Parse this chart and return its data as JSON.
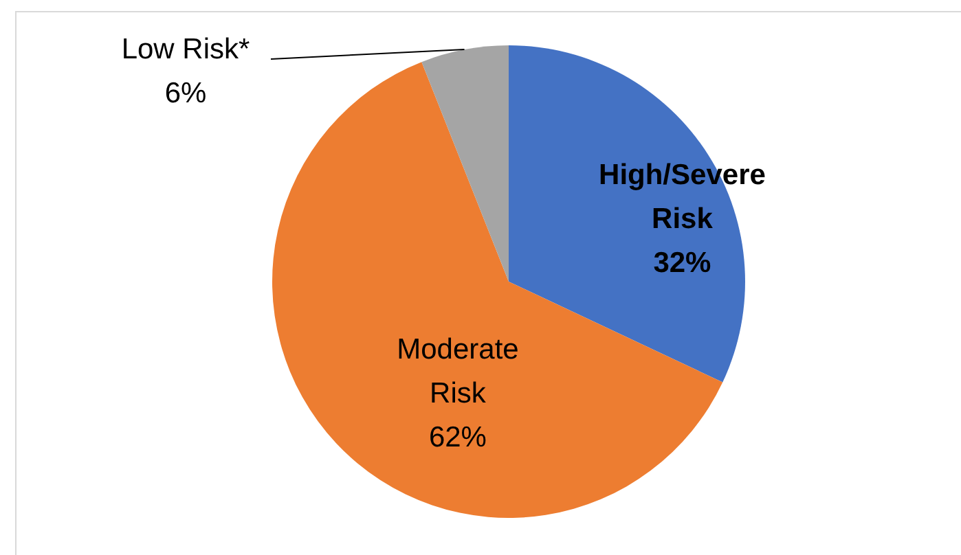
{
  "chart_data": {
    "type": "pie",
    "categories": [
      "High/Severe Risk",
      "Moderate Risk",
      "Low Risk*"
    ],
    "values": [
      32,
      62,
      6
    ],
    "colors": [
      "#4472c4",
      "#ed7d31",
      "#a5a5a5"
    ],
    "value_labels": [
      "32%",
      "62%",
      "6%"
    ]
  }
}
